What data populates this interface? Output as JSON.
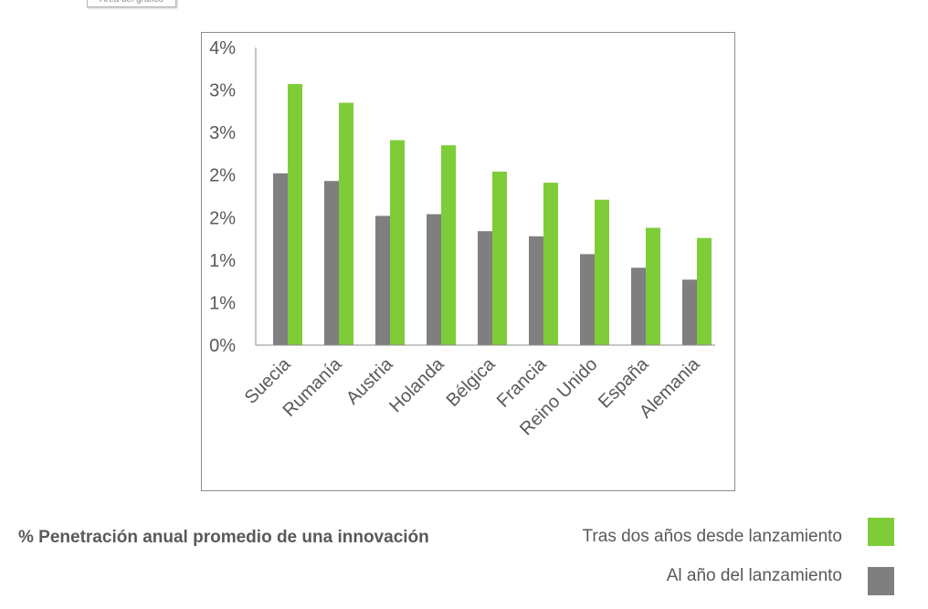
{
  "tooltip": {
    "text": "Área del gráfico"
  },
  "caption": "% Penetración anual promedio de una innovación",
  "legend": [
    {
      "label": "Tras dos años desde lanzamiento",
      "color": "#7fcc39"
    },
    {
      "label": "Al año del lanzamiento",
      "color": "#7f7f7f"
    }
  ],
  "chart_data": {
    "type": "bar",
    "categories": [
      "Suecia",
      "Rumanía",
      "Austria",
      "Holanda",
      "Bélgica",
      "Francia",
      "Reino Unido",
      "España",
      "Alemania"
    ],
    "series": [
      {
        "name": "Al año del lanzamiento",
        "color": "#7f7f7f",
        "values": [
          2.02,
          1.93,
          1.52,
          1.54,
          1.34,
          1.28,
          1.07,
          0.91,
          0.77
        ]
      },
      {
        "name": "Tras dos años desde lanzamiento",
        "color": "#7fcc39",
        "values": [
          3.07,
          2.85,
          2.41,
          2.35,
          2.04,
          1.91,
          1.71,
          1.38,
          1.26
        ]
      }
    ],
    "ylim": [
      0,
      3.5
    ],
    "yticks": [
      0,
      0.5,
      1,
      1.5,
      2,
      2.5,
      3,
      3.5
    ],
    "ytick_labels": [
      "0%",
      "1%",
      "1%",
      "2%",
      "2%",
      "3%",
      "3%",
      "4%"
    ],
    "legend_position": "bottom-right",
    "grid": false
  }
}
